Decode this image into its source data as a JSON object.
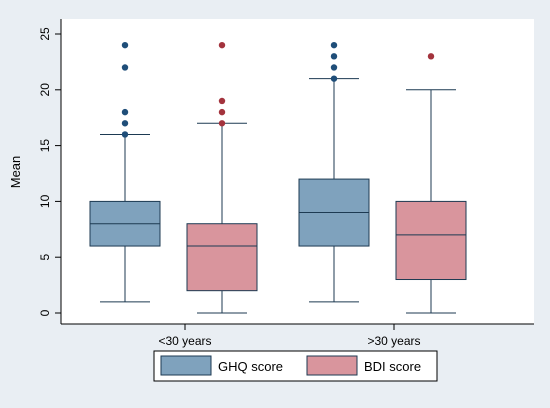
{
  "chart_data": {
    "type": "box",
    "title": "",
    "xlabel": "",
    "ylabel": "Mean",
    "ylim": [
      0,
      25
    ],
    "yticks": [
      0,
      5,
      10,
      15,
      20,
      25
    ],
    "grid": false,
    "legend_position": "bottom",
    "categories": [
      "<30 years",
      ">30 years"
    ],
    "series": [
      {
        "name": "GHQ score",
        "color": "#7fa2bd",
        "outlier_color": "#1f4e79",
        "boxes": [
          {
            "whisker_low": 1,
            "q1": 6,
            "median": 8,
            "q3": 10,
            "whisker_high": 16,
            "outliers": [
              16,
              17,
              18,
              22,
              24
            ]
          },
          {
            "whisker_low": 1,
            "q1": 6,
            "median": 9,
            "q3": 12,
            "whisker_high": 21,
            "outliers": [
              21,
              22,
              23,
              24
            ]
          }
        ]
      },
      {
        "name": "BDI score",
        "color": "#d9959d",
        "outlier_color": "#a3333d",
        "boxes": [
          {
            "whisker_low": 0,
            "q1": 2,
            "median": 6,
            "q3": 8,
            "whisker_high": 17,
            "outliers": [
              17,
              18,
              19,
              24
            ]
          },
          {
            "whisker_low": 0,
            "q1": 3,
            "median": 7,
            "q3": 10,
            "whisker_high": 20,
            "outliers": [
              23
            ]
          }
        ]
      }
    ]
  }
}
